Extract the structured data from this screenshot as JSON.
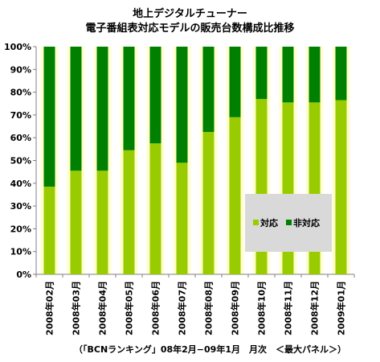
{
  "chart_data": {
    "type": "bar",
    "stacked": true,
    "percent": true,
    "title_line1": "地上デジタルチューナー",
    "title_line2": "電子番組表対応モデルの販売台数構成比推移",
    "categories": [
      "2008年02月",
      "2008年03月",
      "2008年04月",
      "2008年05月",
      "2008年06月",
      "2008年07月",
      "2008年08月",
      "2008年09月",
      "2008年10月",
      "2008年11月",
      "2008年12月",
      "2009年01月"
    ],
    "series": [
      {
        "name": "対応",
        "color": "#99cc00",
        "values": [
          38.5,
          45.5,
          45.5,
          54.5,
          57.5,
          49,
          62.5,
          69,
          77,
          75.5,
          75.5,
          76.5
        ]
      },
      {
        "name": "非対応",
        "color": "#008000",
        "values": [
          61.5,
          54.5,
          54.5,
          45.5,
          42.5,
          51,
          37.5,
          31,
          23,
          24.5,
          24.5,
          23.5
        ]
      }
    ],
    "ylim": [
      0,
      100
    ],
    "yticks": [
      "0%",
      "10%",
      "20%",
      "30%",
      "40%",
      "50%",
      "60%",
      "70%",
      "80%",
      "90%",
      "100%"
    ],
    "grid": false,
    "legend_position": "lower-right, inside plot",
    "footer": "（「BCNランキング」08年2月−09年1月　月次　＜最大パネル＞）"
  }
}
